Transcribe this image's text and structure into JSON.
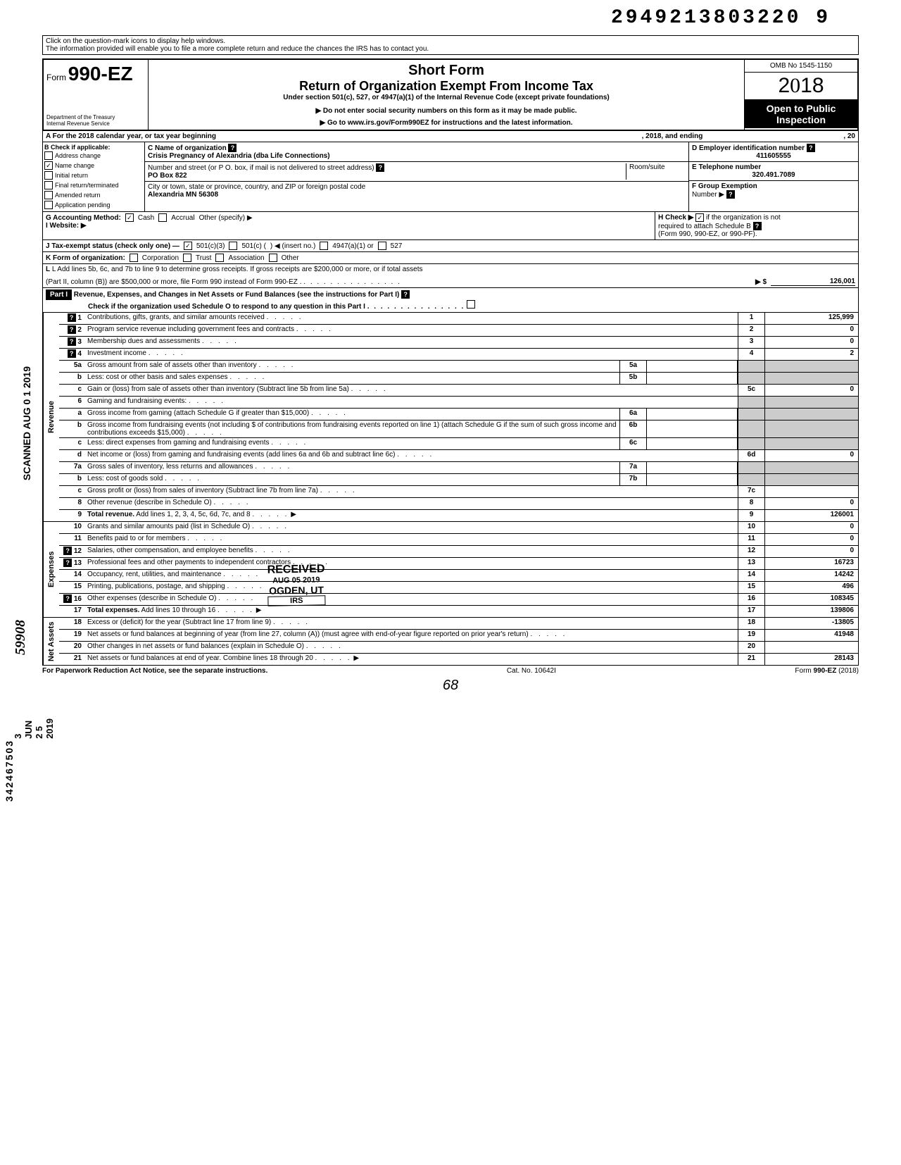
{
  "top_tracking_number": "2949213803220 9",
  "help_line1": "Click on the question-mark icons to display help windows.",
  "help_line2": "The information provided will enable you to file a more complete return and reduce the chances the IRS has to contact you.",
  "form": {
    "form_label": "Form",
    "form_number": "990-EZ",
    "dept1": "Department of the Treasury",
    "dept2": "Internal Revenue Service",
    "short_form": "Short Form",
    "title": "Return of Organization Exempt From Income Tax",
    "subtitle": "Under section 501(c), 527, or 4947(a)(1) of the Internal Revenue Code (except private foundations)",
    "ssn_warning": "▶ Do not enter social security numbers on this form as it may be made public.",
    "goto": "▶ Go to www.irs.gov/Form990EZ for instructions and the latest information.",
    "omb": "OMB No 1545-1150",
    "year": "2018",
    "open_public1": "Open to Public",
    "open_public2": "Inspection"
  },
  "line_a": {
    "prefix": "A For the 2018 calendar year, or tax year beginning",
    "mid": ", 2018, and ending",
    "suffix": ", 20"
  },
  "section_b": {
    "header": "B Check if applicable:",
    "items": [
      {
        "label": "Address change",
        "checked": false
      },
      {
        "label": "Name change",
        "checked": true
      },
      {
        "label": "Initial return",
        "checked": false
      },
      {
        "label": "Final return/terminated",
        "checked": false
      },
      {
        "label": "Amended return",
        "checked": false
      },
      {
        "label": "Application pending",
        "checked": false
      }
    ]
  },
  "section_c": {
    "name_label": "C Name of organization",
    "name_value": "Crisis Pregnancy of Alexandria (dba Life Connections)",
    "addr_label": "Number and street (or P O. box, if mail is not delivered to street address)",
    "room_label": "Room/suite",
    "addr_value": "PO Box 822",
    "city_label": "City or town, state or province, country, and ZIP or foreign postal code",
    "city_value": "Alexandria MN  56308"
  },
  "section_d": {
    "label": "D Employer identification number",
    "value": "411605555"
  },
  "section_e": {
    "label": "E Telephone number",
    "value": "320.491.7089"
  },
  "section_f": {
    "label": "F Group Exemption",
    "label2": "Number ▶"
  },
  "line_g": {
    "label": "G Accounting Method:",
    "cash": "Cash",
    "accrual": "Accrual",
    "other": "Other (specify) ▶",
    "cash_checked": true
  },
  "line_h": {
    "text1": "H Check ▶",
    "text2": "if the organization is not",
    "text3": "required to attach Schedule B",
    "text4": "(Form 990, 990-EZ, or 990-PF).",
    "checked": true
  },
  "line_i": {
    "label": "I Website: ▶"
  },
  "line_j": {
    "label": "J Tax-exempt status (check only one) —",
    "opt1": "501(c)(3)",
    "opt2": "501(c) (",
    "opt2b": ") ◀ (insert no.)",
    "opt3": "4947(a)(1) or",
    "opt4": "527",
    "checked_501c3": true
  },
  "line_k": {
    "label": "K Form of organization:",
    "corp": "Corporation",
    "trust": "Trust",
    "assoc": "Association",
    "other": "Other"
  },
  "line_l": {
    "text1": "L Add lines 5b, 6c, and 7b to line 9 to determine gross receipts. If gross receipts are $200,000 or more, or if total assets",
    "text2": "(Part II, column (B)) are $500,000 or more, file Form 990 instead of Form 990-EZ .",
    "arrow": "▶  $",
    "value": "126,001"
  },
  "part1": {
    "label": "Part I",
    "title": "Revenue, Expenses, and Changes in Net Assets or Fund Balances (see the instructions for Part I)",
    "check_text": "Check if the organization used Schedule O to respond to any question in this Part I"
  },
  "sections": {
    "revenue": "Revenue",
    "expenses": "Expenses",
    "netassets": "Net Assets"
  },
  "lines": [
    {
      "num": "1",
      "desc": "Contributions, gifts, grants, and similar amounts received",
      "end_num": "1",
      "end_val": "125,999",
      "has_q": true
    },
    {
      "num": "2",
      "desc": "Program service revenue including government fees and contracts",
      "end_num": "2",
      "end_val": "0",
      "has_q": true
    },
    {
      "num": "3",
      "desc": "Membership dues and assessments",
      "end_num": "3",
      "end_val": "0",
      "has_q": true
    },
    {
      "num": "4",
      "desc": "Investment income",
      "end_num": "4",
      "end_val": "2",
      "has_q": true
    },
    {
      "num": "5a",
      "desc": "Gross amount from sale of assets other than inventory",
      "mid_num": "5a",
      "mid_val": ""
    },
    {
      "num": "b",
      "desc": "Less: cost or other basis and sales expenses",
      "mid_num": "5b",
      "mid_val": ""
    },
    {
      "num": "c",
      "desc": "Gain or (loss) from sale of assets other than inventory (Subtract line 5b from line 5a)",
      "end_num": "5c",
      "end_val": "0"
    },
    {
      "num": "6",
      "desc": "Gaming and fundraising events:"
    },
    {
      "num": "a",
      "desc": "Gross income from gaming (attach Schedule G if greater than $15,000)",
      "mid_num": "6a",
      "mid_val": ""
    },
    {
      "num": "b",
      "desc": "Gross income from fundraising events (not including  $                    of contributions from fundraising events reported on line 1) (attach Schedule G if the sum of such gross income and contributions exceeds $15,000)",
      "mid_num": "6b",
      "mid_val": ""
    },
    {
      "num": "c",
      "desc": "Less: direct expenses from gaming and fundraising events",
      "mid_num": "6c",
      "mid_val": ""
    },
    {
      "num": "d",
      "desc": "Net income or (loss) from gaming and fundraising events (add lines 6a and 6b and subtract line 6c)",
      "end_num": "6d",
      "end_val": "0"
    },
    {
      "num": "7a",
      "desc": "Gross sales of inventory, less returns and allowances",
      "mid_num": "7a",
      "mid_val": ""
    },
    {
      "num": "b",
      "desc": "Less: cost of goods sold",
      "mid_num": "7b",
      "mid_val": ""
    },
    {
      "num": "c",
      "desc": "Gross profit or (loss) from sales of inventory (Subtract line 7b from line 7a)",
      "end_num": "7c",
      "end_val": ""
    },
    {
      "num": "8",
      "desc": "Other revenue (describe in Schedule O)",
      "end_num": "8",
      "end_val": "0"
    },
    {
      "num": "9",
      "desc": "Total revenue. Add lines 1, 2, 3, 4, 5c, 6d, 7c, and 8",
      "end_num": "9",
      "end_val": "126001",
      "arrow": true,
      "bold": true
    }
  ],
  "expense_lines": [
    {
      "num": "10",
      "desc": "Grants and similar amounts paid (list in Schedule O)",
      "end_num": "10",
      "end_val": "0"
    },
    {
      "num": "11",
      "desc": "Benefits paid to or for members",
      "end_num": "11",
      "end_val": "0"
    },
    {
      "num": "12",
      "desc": "Salaries, other compensation, and employee benefits",
      "end_num": "12",
      "end_val": "0",
      "has_q": true
    },
    {
      "num": "13",
      "desc": "Professional fees and other payments to independent contractors",
      "end_num": "13",
      "end_val": "16723",
      "has_q": true
    },
    {
      "num": "14",
      "desc": "Occupancy, rent, utilities, and maintenance",
      "end_num": "14",
      "end_val": "14242"
    },
    {
      "num": "15",
      "desc": "Printing, publications, postage, and shipping",
      "end_num": "15",
      "end_val": "496"
    },
    {
      "num": "16",
      "desc": "Other expenses (describe in Schedule O)",
      "end_num": "16",
      "end_val": "108345",
      "has_q": true
    },
    {
      "num": "17",
      "desc": "Total expenses. Add lines 10 through 16",
      "end_num": "17",
      "end_val": "139806",
      "arrow": true,
      "bold": true
    }
  ],
  "netasset_lines": [
    {
      "num": "18",
      "desc": "Excess or (deficit) for the year (Subtract line 17 from line 9)",
      "end_num": "18",
      "end_val": "-13805"
    },
    {
      "num": "19",
      "desc": "Net assets or fund balances at beginning of year (from line 27, column (A)) (must agree with end-of-year figure reported on prior year's return)",
      "end_num": "19",
      "end_val": "41948"
    },
    {
      "num": "20",
      "desc": "Other changes in net assets or fund balances (explain in Schedule O)",
      "end_num": "20",
      "end_val": ""
    },
    {
      "num": "21",
      "desc": "Net assets or fund balances at end of year. Combine lines 18 through 20",
      "end_num": "21",
      "end_val": "28143",
      "arrow": true
    }
  ],
  "footer": {
    "left": "For Paperwork Reduction Act Notice, see the separate instructions.",
    "mid": "Cat. No. 10642I",
    "right": "Form 990-EZ (2018)"
  },
  "page_num": "68",
  "stamps": {
    "received": "RECEIVED",
    "ogden": "OGDEN, UT",
    "irs": "IRS",
    "date": "AUG 05 2019"
  },
  "margin": {
    "scanned": "SCANNED AUG 0 1 2019",
    "script1": "59908",
    "script2": "3 JUN 2 5 2019",
    "script3": "342467503"
  }
}
